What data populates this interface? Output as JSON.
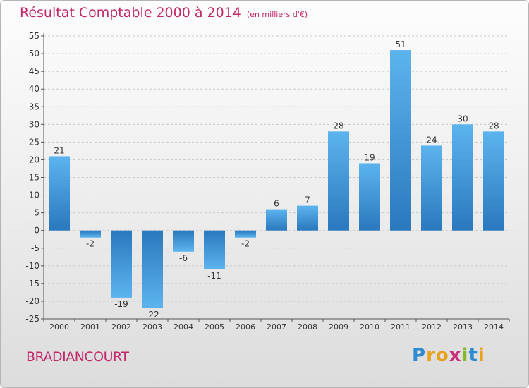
{
  "header": {
    "title": "Résultat Comptable 2000 à 2014",
    "subtitle": "(en milliers d'€)"
  },
  "footer": {
    "commune": "BRADIANCOURT",
    "logo_letters": [
      "P",
      "r",
      "o",
      "x",
      "i",
      "t",
      "i"
    ],
    "logo_colors": [
      "#2f8bd1",
      "#e8a21a",
      "#e8a21a",
      "#cc2f7a",
      "#86b827",
      "#2f8bd1",
      "#e8a21a"
    ]
  },
  "chart_data": {
    "type": "bar",
    "title": "Résultat Comptable 2000 à 2014",
    "subtitle": "(en milliers d'€)",
    "categories": [
      "2000",
      "2001",
      "2002",
      "2003",
      "2004",
      "2005",
      "2006",
      "2007",
      "2008",
      "2009",
      "2010",
      "2011",
      "2012",
      "2013",
      "2014"
    ],
    "values": [
      21,
      -2,
      -19,
      -22,
      -6,
      -11,
      -2,
      6,
      7,
      28,
      19,
      51,
      24,
      30,
      28
    ],
    "value_labels": [
      "21",
      "-2",
      "-19",
      "-22",
      "-6",
      "-11",
      "-2",
      "6",
      "7",
      "28",
      "19",
      "51",
      "24",
      "30",
      "28"
    ],
    "ylim": [
      -25,
      55
    ],
    "yticks": [
      55,
      50,
      45,
      40,
      35,
      30,
      25,
      20,
      15,
      10,
      5,
      0,
      -5,
      -10,
      -15,
      -20,
      -25
    ],
    "grid": true,
    "bar_color": "#3a95dc"
  }
}
